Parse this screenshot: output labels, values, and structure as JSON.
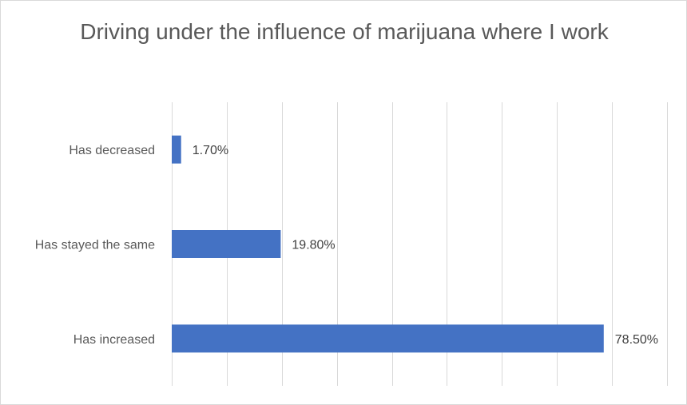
{
  "chart_data": {
    "type": "bar",
    "orientation": "horizontal",
    "title": "Driving under the influence of marijuana where I work",
    "categories": [
      "Has decreased",
      "Has stayed the same",
      "Has increased"
    ],
    "values": [
      1.7,
      19.8,
      78.5
    ],
    "data_labels": [
      "1.70%",
      "19.80%",
      "78.50%"
    ],
    "xlim": [
      0,
      90
    ],
    "x_gridline_step": 10,
    "x_tick_labels_shown": false,
    "grid": true,
    "legend": "none",
    "bar_color": "#4472C4",
    "gridline_color": "#d9d9d9"
  }
}
